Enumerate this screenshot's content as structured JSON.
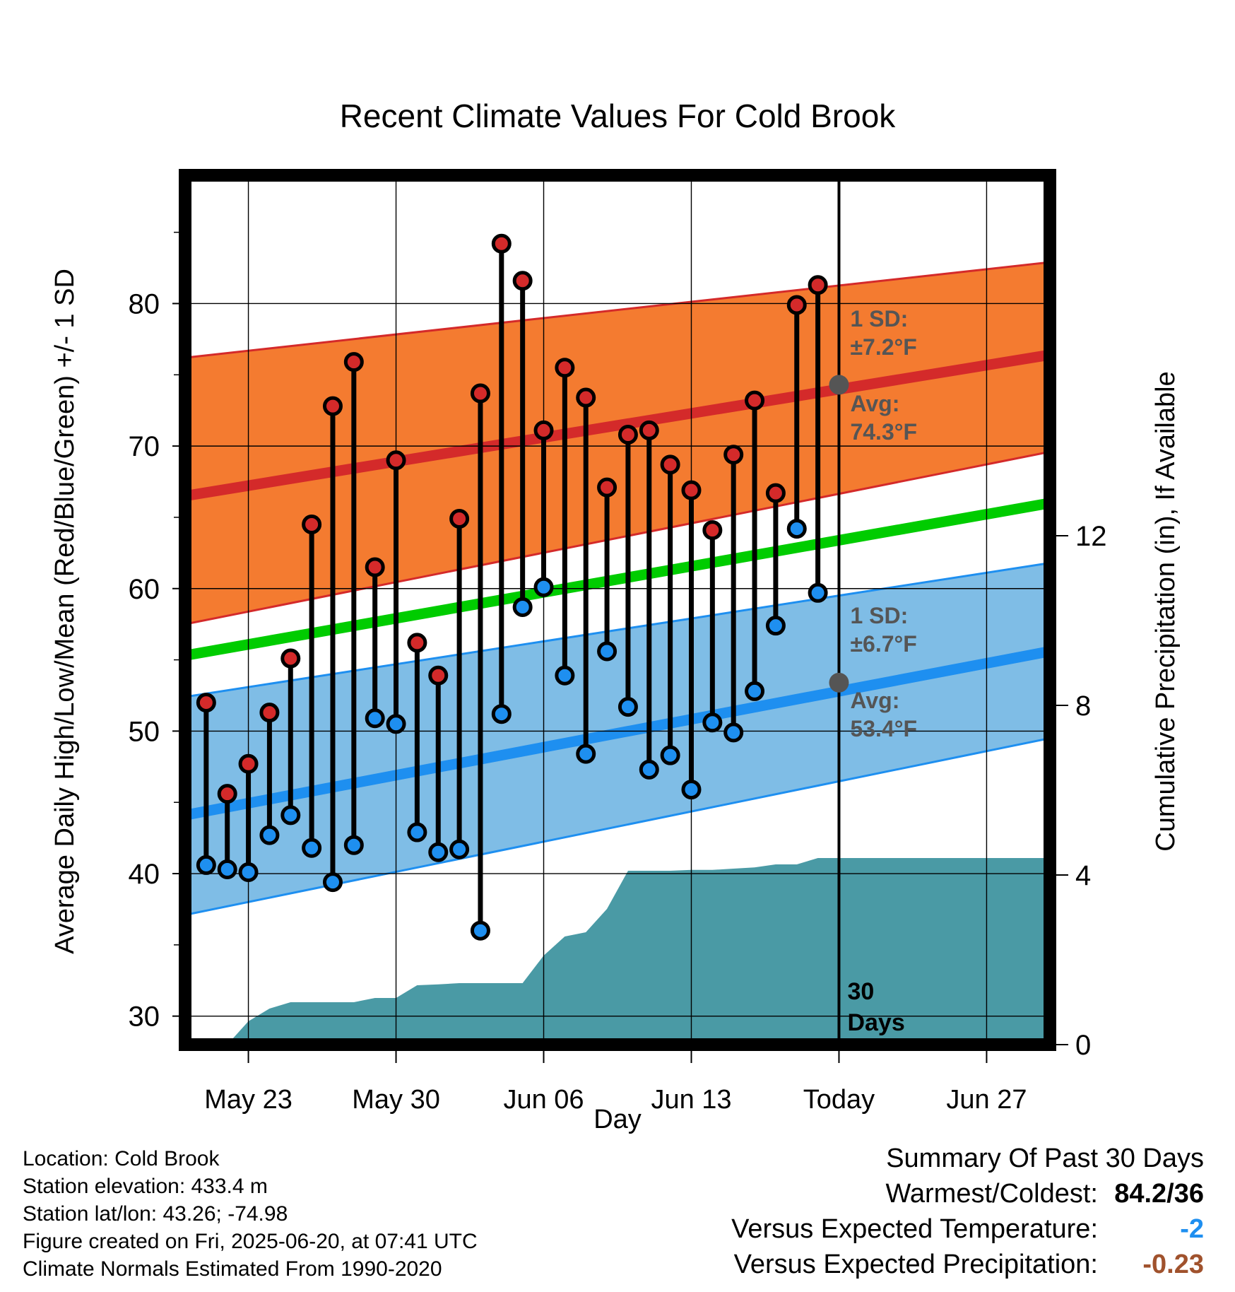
{
  "chart_data": {
    "type": "line",
    "title": "Recent Climate Values For Cold Brook",
    "xlabel": "Day",
    "ylabel": "Average Daily High/Low/Mean (Red/Blue/Green) +/- 1 SD",
    "y2label": "Cumulative Precipitation (in), If Available",
    "xlim": [
      "2025-05-20",
      "2025-06-30"
    ],
    "ylim": [
      28,
      89
    ],
    "y2lim": [
      0,
      20.5
    ],
    "x_ticks": [
      {
        "date": "2025-05-23",
        "label": "May 23"
      },
      {
        "date": "2025-05-30",
        "label": "May 30"
      },
      {
        "date": "2025-06-06",
        "label": "Jun 06"
      },
      {
        "date": "2025-06-13",
        "label": "Jun 13"
      },
      {
        "date": "2025-06-20",
        "label": "Today"
      },
      {
        "date": "2025-06-27",
        "label": "Jun 27"
      }
    ],
    "y_ticks": [
      30,
      40,
      50,
      60,
      70,
      80
    ],
    "y2_ticks": [
      0,
      4,
      8,
      12
    ],
    "grid": true,
    "today": "2025-06-20",
    "observed": {
      "dates": [
        "2025-05-21",
        "2025-05-22",
        "2025-05-23",
        "2025-05-24",
        "2025-05-25",
        "2025-05-26",
        "2025-05-27",
        "2025-05-28",
        "2025-05-29",
        "2025-05-30",
        "2025-05-31",
        "2025-06-01",
        "2025-06-02",
        "2025-06-03",
        "2025-06-04",
        "2025-06-05",
        "2025-06-06",
        "2025-06-07",
        "2025-06-08",
        "2025-06-09",
        "2025-06-10",
        "2025-06-11",
        "2025-06-12",
        "2025-06-13",
        "2025-06-14",
        "2025-06-15",
        "2025-06-16",
        "2025-06-17",
        "2025-06-18",
        "2025-06-19"
      ],
      "high": [
        52.0,
        45.6,
        47.7,
        51.3,
        55.1,
        64.5,
        72.8,
        75.9,
        61.5,
        69.0,
        56.2,
        53.9,
        64.9,
        73.7,
        84.2,
        81.6,
        71.1,
        75.5,
        73.4,
        67.1,
        70.8,
        71.1,
        68.7,
        66.9,
        64.1,
        69.4,
        73.2,
        66.7,
        79.9,
        81.3
      ],
      "low": [
        40.6,
        40.3,
        40.1,
        42.7,
        44.1,
        41.8,
        39.4,
        42.0,
        50.9,
        50.5,
        42.9,
        41.5,
        41.7,
        36.0,
        51.2,
        58.7,
        60.1,
        53.9,
        48.4,
        55.6,
        51.7,
        47.3,
        48.3,
        45.9,
        50.6,
        49.9,
        52.8,
        57.4,
        64.2,
        59.7
      ]
    },
    "normals": {
      "dates": [
        "2025-05-20",
        "2025-06-30"
      ],
      "high_avg": [
        66.5,
        76.4
      ],
      "high_upper": [
        76.2,
        82.9
      ],
      "high_lower": [
        57.5,
        69.6
      ],
      "low_avg": [
        44.1,
        55.6
      ],
      "low_upper": [
        52.4,
        61.8
      ],
      "low_lower": [
        37.1,
        49.5
      ],
      "mean_avg": [
        55.3,
        66.0
      ]
    },
    "high_sd_label": [
      "1 SD:",
      "±7.2°F"
    ],
    "high_avg_label": [
      "Avg:",
      "74.3°F"
    ],
    "low_sd_label": [
      "1 SD:",
      "±6.7°F"
    ],
    "low_avg_label": [
      "Avg:",
      "53.4°F"
    ],
    "today_high_avg": 74.3,
    "today_low_avg": 53.4,
    "precip_cumulative": {
      "dates": [
        "2025-05-20",
        "2025-05-21",
        "2025-05-22",
        "2025-05-23",
        "2025-05-24",
        "2025-05-25",
        "2025-05-26",
        "2025-05-27",
        "2025-05-28",
        "2025-05-29",
        "2025-05-30",
        "2025-05-31",
        "2025-06-01",
        "2025-06-02",
        "2025-06-03",
        "2025-06-04",
        "2025-06-05",
        "2025-06-06",
        "2025-06-07",
        "2025-06-08",
        "2025-06-09",
        "2025-06-10",
        "2025-06-11",
        "2025-06-12",
        "2025-06-13",
        "2025-06-14",
        "2025-06-15",
        "2025-06-16",
        "2025-06-17",
        "2025-06-18",
        "2025-06-19",
        "2025-06-20",
        "2025-06-30"
      ],
      "values": [
        0,
        0,
        0,
        0.55,
        0.85,
        1.0,
        1.0,
        1.0,
        1.0,
        1.1,
        1.1,
        1.4,
        1.42,
        1.45,
        1.45,
        1.45,
        1.45,
        2.1,
        2.55,
        2.65,
        3.2,
        4.1,
        4.1,
        4.1,
        4.12,
        4.12,
        4.15,
        4.18,
        4.25,
        4.25,
        4.4,
        4.4,
        4.4
      ]
    },
    "days_label": [
      "30",
      "Days"
    ],
    "colors": {
      "high_band": "#f47b30",
      "high_line": "#d42a2a",
      "low_band": "#7fbde6",
      "low_line": "#1e8ff0",
      "mean_line": "#00cc00",
      "precip": "#4a9aa5",
      "high_point": "#d42a2a",
      "low_point": "#1e8ff0",
      "annot_text": "#555555",
      "marker_gray": "#555555"
    }
  },
  "footer": {
    "location": "Location: Cold Brook",
    "elevation": "Station elevation: 433.4 m",
    "latlon": "Station lat/lon: 43.26; -74.98",
    "created": "Figure created on Fri, 2025-06-20, at 07:41 UTC",
    "normals": "Climate Normals Estimated From 1990-2020"
  },
  "summary": {
    "title": "Summary Of Past 30 Days",
    "warm_cold_label": "Warmest/Coldest:",
    "warm_cold_value": "84.2/36",
    "temp_label": "Versus Expected Temperature:",
    "temp_value": "-2",
    "temp_color": "#1e8ff0",
    "precip_label": "Versus Expected Precipitation:",
    "precip_value": "-0.23",
    "precip_color": "#a0522d"
  }
}
